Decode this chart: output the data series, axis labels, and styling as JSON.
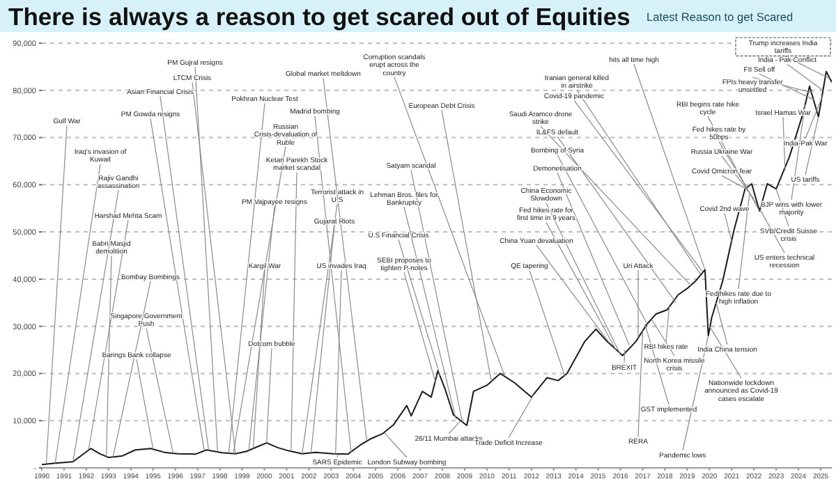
{
  "chart_data": {
    "type": "line",
    "title": "There is always a reason to get scared out of Equities",
    "subtitle": "Latest Reason to get Scared",
    "xlim": [
      1990,
      2025.5
    ],
    "xticks": [
      1990,
      1991,
      1992,
      1993,
      1994,
      1995,
      1996,
      1997,
      1998,
      1999,
      2000,
      2001,
      2002,
      2003,
      2004,
      2005,
      2006,
      2007,
      2008,
      2009,
      2010,
      2011,
      2012,
      2013,
      2014,
      2015,
      2016,
      2017,
      2018,
      2019,
      2020,
      2021,
      2022,
      2023,
      2024,
      2025
    ],
    "ylim": [
      0,
      90000
    ],
    "yticks": [
      {
        "value": 0,
        "label": "-"
      },
      {
        "value": 10000,
        "label": "10,000"
      },
      {
        "value": 20000,
        "label": "20,000"
      },
      {
        "value": 30000,
        "label": "30,000"
      },
      {
        "value": 40000,
        "label": "40,000"
      },
      {
        "value": 50000,
        "label": "50,000"
      },
      {
        "value": 60000,
        "label": "60,000"
      },
      {
        "value": 70000,
        "label": "70,000"
      },
      {
        "value": 80000,
        "label": "80,000"
      },
      {
        "value": 90000,
        "label": "90,000"
      }
    ],
    "grid": "y",
    "marker": "none",
    "line_style": "solid",
    "series": [
      {
        "color": "#1a1a1a",
        "x": [
          1990,
          1990.6,
          1991.4,
          1992.2,
          1992.6,
          1993,
          1993.6,
          1994.2,
          1994.9,
          1995.5,
          1996.1,
          1996.9,
          1997.4,
          1998.1,
          1998.7,
          1999.2,
          1999.7,
          2000.1,
          2000.6,
          2001.1,
          2001.7,
          2002.3,
          2003.1,
          2003.75,
          2004.3,
          2004.8,
          2005.3,
          2005.8,
          2006.4,
          2006.6,
          2007.1,
          2007.5,
          2007.8,
          2008.1,
          2008.5,
          2008.9,
          2009.1,
          2009.4,
          2010,
          2010.6,
          2011.25,
          2012,
          2012.7,
          2013.2,
          2013.6,
          2014.4,
          2014.9,
          2015.4,
          2016.1,
          2016.7,
          2017.2,
          2017.6,
          2018.1,
          2018.6,
          2019,
          2019.4,
          2019.8,
          2019.95,
          2020.1,
          2020.6,
          2021.1,
          2021.6,
          2021.9,
          2022.25,
          2022.6,
          2023,
          2023.6,
          2024.2,
          2024.5,
          2024.9,
          2025.25,
          2025.5
        ],
        "values": [
          700,
          1000,
          1300,
          4100,
          3000,
          2200,
          2500,
          3800,
          4100,
          3300,
          3000,
          2900,
          3800,
          3200,
          3000,
          3500,
          4500,
          5300,
          4300,
          3600,
          3000,
          3300,
          3000,
          2900,
          4800,
          6200,
          7200,
          9100,
          13200,
          11000,
          16200,
          15000,
          20600,
          17000,
          11200,
          9700,
          9000,
          16200,
          17500,
          20000,
          18000,
          15000,
          19100,
          18500,
          20000,
          26800,
          29400,
          26800,
          23800,
          26800,
          30500,
          32600,
          33500,
          36700,
          38000,
          39700,
          42000,
          28000,
          31800,
          39700,
          50300,
          59100,
          60200,
          54400,
          60200,
          59100,
          66000,
          75000,
          80900,
          74400,
          84000,
          81700
        ]
      }
    ],
    "annotations": [
      {
        "text": "Gulf War",
        "x": 1990.2,
        "y": 800
      },
      {
        "text": "Iraq's invasion of Kuwait",
        "x": 1990.6,
        "y": 1000
      },
      {
        "text": "Rajiv Gandhi assassination",
        "x": 1991.4,
        "y": 1300
      },
      {
        "text": "Harshad Mehta Scam",
        "x": 1992.1,
        "y": 3800
      },
      {
        "text": "Babri Masjid demolition",
        "x": 1992.9,
        "y": 2400
      },
      {
        "text": "Bombay Bombings",
        "x": 1993.2,
        "y": 2300
      },
      {
        "text": "Singapore Government Push",
        "x": 1995.9,
        "y": 3100
      },
      {
        "text": "Barings Bank collapse",
        "x": 1995,
        "y": 4000
      },
      {
        "text": "PM Gowda resigns",
        "x": 1997.3,
        "y": 3600
      },
      {
        "text": "Asian Financial Crisis",
        "x": 1997.5,
        "y": 3700
      },
      {
        "text": "LTCM Crisis",
        "x": 1998.7,
        "y": 3000
      },
      {
        "text": "PM Gujral resigns",
        "x": 1997.9,
        "y": 3400
      },
      {
        "text": "Pokhran Nuclear Test",
        "x": 1998.4,
        "y": 3100
      },
      {
        "text": "Russian Crisis-devaluation of Ruble",
        "x": 1998.6,
        "y": 3000
      },
      {
        "text": "PM Vajpayee resigns",
        "x": 1999.3,
        "y": 3700
      },
      {
        "text": "Kargil War",
        "x": 1999.5,
        "y": 4100
      },
      {
        "text": "Ketan Parekh Stock market scandal",
        "x": 2001.2,
        "y": 3500
      },
      {
        "text": "Dotcom bubble",
        "x": 2000.1,
        "y": 5300
      },
      {
        "text": "Terrorist attack in U.S",
        "x": 2001.7,
        "y": 3000
      },
      {
        "text": "Gujarat Riots",
        "x": 2002.1,
        "y": 3200
      },
      {
        "text": "US invades Iraq",
        "x": 2003.2,
        "y": 3000
      },
      {
        "text": "SARS Epidemic",
        "x": 2003.3,
        "y": 2900
      },
      {
        "text": "Global market meltdown",
        "x": 2004.6,
        "y": 5800
      },
      {
        "text": "Madrid bombing",
        "x": 2003.9,
        "y": 3300
      },
      {
        "text": "London Subway bombing",
        "x": 2005.4,
        "y": 7400
      },
      {
        "text": "Corruption scandals erupt across the country",
        "x": 2010.8,
        "y": 19500
      },
      {
        "text": "European Debt Crisis",
        "x": 2010.2,
        "y": 18300
      },
      {
        "text": "Satyam scandal",
        "x": 2008.9,
        "y": 9700
      },
      {
        "text": "Lehman Bros. files for Bankruptcy",
        "x": 2008.6,
        "y": 10500
      },
      {
        "text": "U.S Financial Crisis",
        "x": 2007.9,
        "y": 19500
      },
      {
        "text": "SEBI proposes to tighten P-notes",
        "x": 2007.7,
        "y": 18000
      },
      {
        "text": "26/11 Mumbai attacks",
        "x": 2008.8,
        "y": 9900
      },
      {
        "text": "Trade Deficit Increase",
        "x": 2012.1,
        "y": 15500
      },
      {
        "text": "QE tapering",
        "x": 2013.5,
        "y": 19500
      },
      {
        "text": "China Yuan devaluation",
        "x": 2015.5,
        "y": 26500
      },
      {
        "text": "Fed hikes rate for first time in 9 years",
        "x": 2015.8,
        "y": 25000
      },
      {
        "text": "China Economic Slowdown",
        "x": 2016,
        "y": 24000
      },
      {
        "text": "Demonetisation",
        "x": 2016.4,
        "y": 26000
      },
      {
        "text": "Bombing of Syria",
        "x": 2017.2,
        "y": 30500
      },
      {
        "text": "IL&FS default",
        "x": 2018.5,
        "y": 35000
      },
      {
        "text": "Saudi Aramco drone strike",
        "x": 2019.2,
        "y": 38500
      },
      {
        "text": "Covid-19 pandemic",
        "x": 2019.7,
        "y": 41500
      },
      {
        "text": "Iranian general killed in airstrike",
        "x": 2019.6,
        "y": 41000
      },
      {
        "text": "hits all time high",
        "x": 2019.8,
        "y": 42000
      },
      {
        "text": "BREXIT",
        "x": 2016.2,
        "y": 25000
      },
      {
        "text": "Uri Attack",
        "x": 2016.8,
        "y": 27500
      },
      {
        "text": "RBI hikes rate",
        "x": 2018.2,
        "y": 34500
      },
      {
        "text": "North Korea missile crisis",
        "x": 2017.4,
        "y": 31500
      },
      {
        "text": "GST implemented",
        "x": 2017.1,
        "y": 30500
      },
      {
        "text": "RERA",
        "x": 2017,
        "y": 29000
      },
      {
        "text": "Pandemic lows",
        "x": 2019.95,
        "y": 28000
      },
      {
        "text": "Nationwide lockdown announced as Covid-19 cases escalate",
        "x": 2020,
        "y": 30000
      },
      {
        "text": "India China tension",
        "x": 2020.3,
        "y": 35000
      },
      {
        "text": "Fed hikes rate due to high inflation",
        "x": 2021.8,
        "y": 58000
      },
      {
        "text": "US enters technical recession",
        "x": 2022.3,
        "y": 54500
      },
      {
        "text": "Covid 2nd wave",
        "x": 2021,
        "y": 48000
      },
      {
        "text": "Covid Omicron fear",
        "x": 2021.7,
        "y": 59000
      },
      {
        "text": "Russia Ukraine War",
        "x": 2022,
        "y": 57000
      },
      {
        "text": "Fed hikes rate by 50bps",
        "x": 2022.1,
        "y": 56000
      },
      {
        "text": "RBI begins rate hike cycle",
        "x": 2022.25,
        "y": 54400
      },
      {
        "text": "Israel Hamas War",
        "x": 2023.4,
        "y": 63000
      },
      {
        "text": "SVB/Credit Suisse crisis",
        "x": 2023,
        "y": 59100
      },
      {
        "text": "BJP wins with lower majority",
        "x": 2024.3,
        "y": 77000
      },
      {
        "text": "US tariffs",
        "x": 2024.9,
        "y": 74400
      },
      {
        "text": "India-Pak War",
        "x": 2025.1,
        "y": 79000
      },
      {
        "text": "India - Pak Conflict",
        "x": 2025.1,
        "y": 80000
      },
      {
        "text": "FII Sell off",
        "x": 2024.7,
        "y": 78000
      },
      {
        "text": "FPIs heavy transfer unsettled",
        "x": 2024.6,
        "y": 79500
      },
      {
        "text": "Trump increases India tariffs",
        "x": 2025.4,
        "y": 82500
      }
    ]
  }
}
